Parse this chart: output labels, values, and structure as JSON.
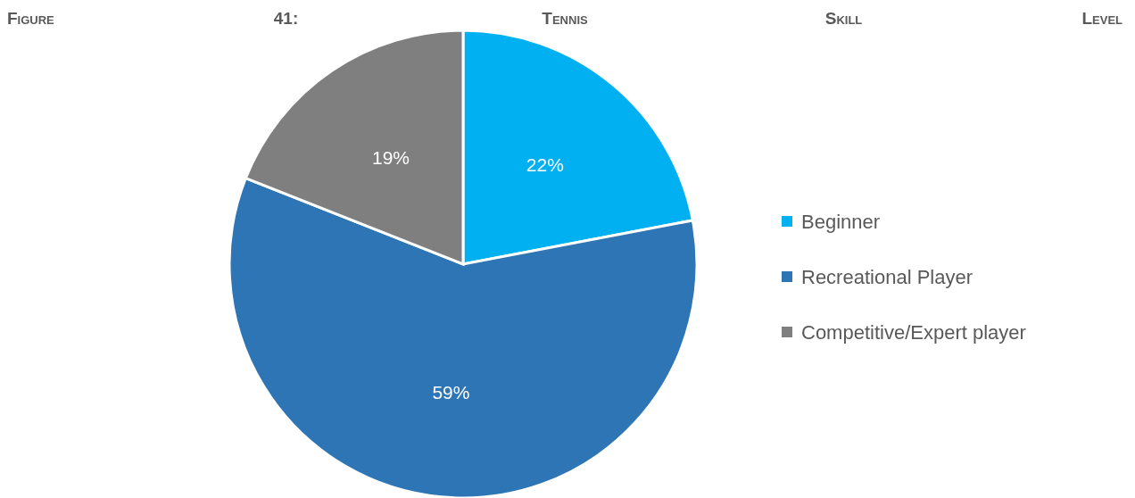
{
  "chart_data": {
    "type": "pie",
    "title": "Figure 41: Tennis Skill Level",
    "categories": [
      "Beginner",
      "Recreational Player",
      "Competitive/Expert player"
    ],
    "values": [
      22,
      59,
      19
    ],
    "colors": [
      "#00b0f0",
      "#2e75b6",
      "#7f7f7f"
    ],
    "value_labels": [
      "22%",
      "59%",
      "19%"
    ],
    "legend": "right"
  }
}
